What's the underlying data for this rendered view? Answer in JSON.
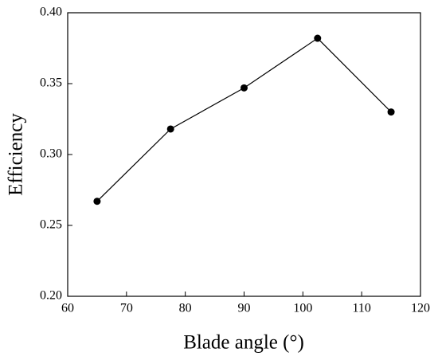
{
  "chart_data": {
    "type": "line",
    "x_label": "Blade angle (°)",
    "y_label": "Efficiency",
    "x": [
      65,
      77.5,
      90,
      102.5,
      115
    ],
    "values": [
      0.267,
      0.318,
      0.347,
      0.382,
      0.33
    ],
    "color": "#000000",
    "xlim": [
      60,
      120
    ],
    "xticks": [
      60,
      70,
      80,
      90,
      100,
      110,
      120
    ],
    "ylim": [
      0.2,
      0.4
    ],
    "yticks": [
      {
        "value": 0.2,
        "label": "0.20"
      },
      0.25,
      {
        "value": 0.3,
        "label": "0.30"
      },
      0.35,
      {
        "value": 0.4,
        "label": "0.40"
      }
    ],
    "grid": false
  }
}
